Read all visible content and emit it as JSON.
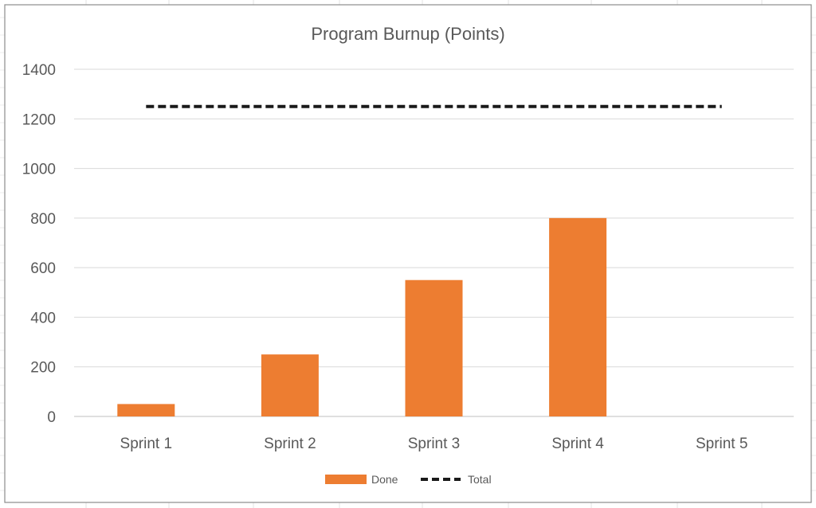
{
  "chart_data": {
    "type": "bar",
    "title": "Program Burnup (Points)",
    "categories": [
      "Sprint 1",
      "Sprint 2",
      "Sprint 3",
      "Sprint 4",
      "Sprint 5"
    ],
    "series": [
      {
        "name": "Done",
        "type": "bar",
        "color": "#ED7D31",
        "values": [
          50,
          250,
          550,
          800,
          0
        ]
      },
      {
        "name": "Total",
        "type": "line",
        "style": "dashed",
        "color": "#1A1A1A",
        "values": [
          1250,
          1250,
          1250,
          1250,
          1250
        ]
      }
    ],
    "y_ticks": [
      "0",
      "200",
      "400",
      "600",
      "800",
      "1000",
      "1200",
      "1400"
    ],
    "ylim": [
      0,
      1400
    ],
    "grid": true,
    "legend_position": "bottom"
  }
}
